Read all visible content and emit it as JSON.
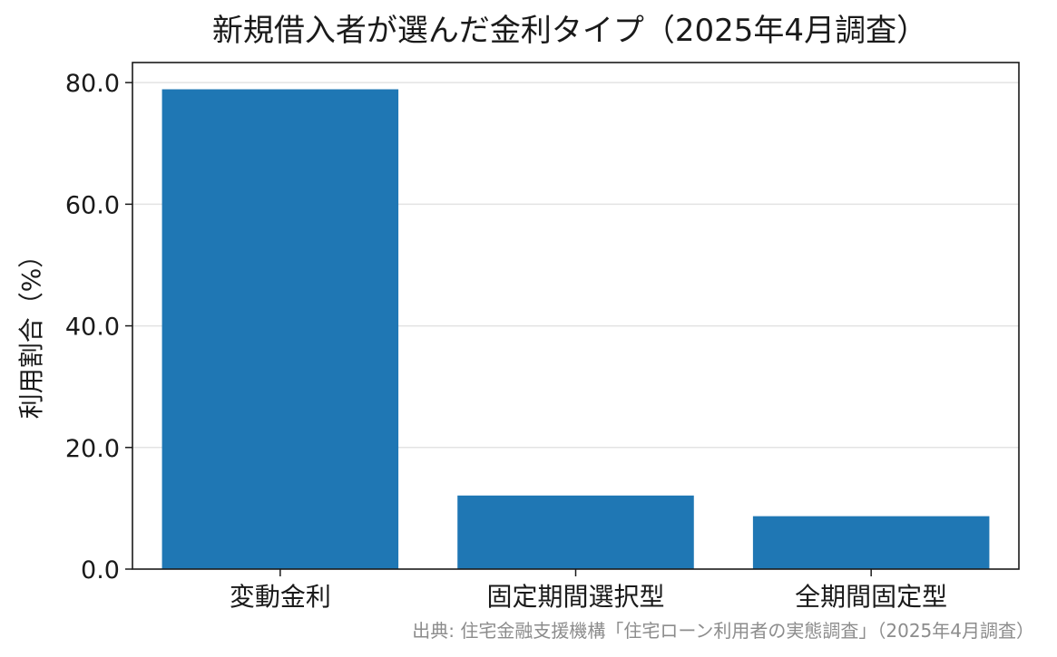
{
  "chart_data": {
    "type": "bar",
    "title": "新規借入者が選んだ金利タイプ（2025年4月調査）",
    "ylabel": "利用割合（%）",
    "xlabel": "",
    "categories": [
      "変動金利",
      "固定期間選択型",
      "全期間固定型"
    ],
    "values": [
      78.9,
      12.1,
      8.7
    ],
    "ylim": [
      0,
      83.3
    ],
    "yticks": [
      0,
      20,
      40,
      60,
      80
    ],
    "ytick_labels": [
      "0.0",
      "20.0",
      "40.0",
      "60.0",
      "80.0"
    ],
    "grid": "horizontal",
    "bar_color": "#1f77b4",
    "source": "出典: 住宅金融支援機構「住宅ローン利用者の実態調査」（2025年4月調査）"
  }
}
